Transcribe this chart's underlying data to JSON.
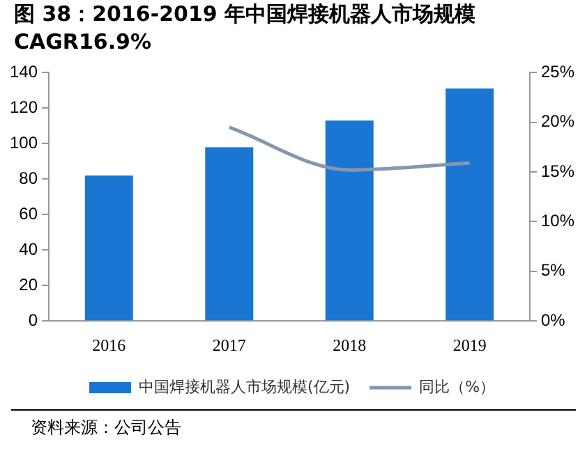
{
  "chart_data": {
    "type": "bar",
    "title": "图 38：2016-2019 年中国焊接机器人市场规模CAGR16.9%",
    "categories": [
      "2016",
      "2017",
      "2018",
      "2019"
    ],
    "series": [
      {
        "name": "中国焊接机器人市场规模(亿元)",
        "color": "#1a76d2",
        "values": [
          82,
          98,
          113,
          131
        ]
      },
      {
        "name": "同比（%）",
        "type": "line",
        "axis": "y2",
        "color": "#8497b0",
        "values": [
          null,
          19.5,
          15.2,
          15.9
        ]
      }
    ],
    "ylim": [
      0,
      140
    ],
    "yticks": [
      0,
      20,
      40,
      60,
      80,
      100,
      120,
      140
    ],
    "y2lim": [
      0,
      25
    ],
    "y2ticks": [
      {
        "value": 0,
        "label": "0%"
      },
      {
        "value": 5,
        "label": "5%"
      },
      {
        "value": 10,
        "label": "10%"
      },
      {
        "value": 15,
        "label": "15%"
      },
      {
        "value": 20,
        "label": "20%"
      },
      {
        "value": 25,
        "label": "25%"
      }
    ],
    "grid": false,
    "legend": "bottom",
    "marker": "none",
    "annotations": [
      "资料来源：公司公告"
    ]
  }
}
